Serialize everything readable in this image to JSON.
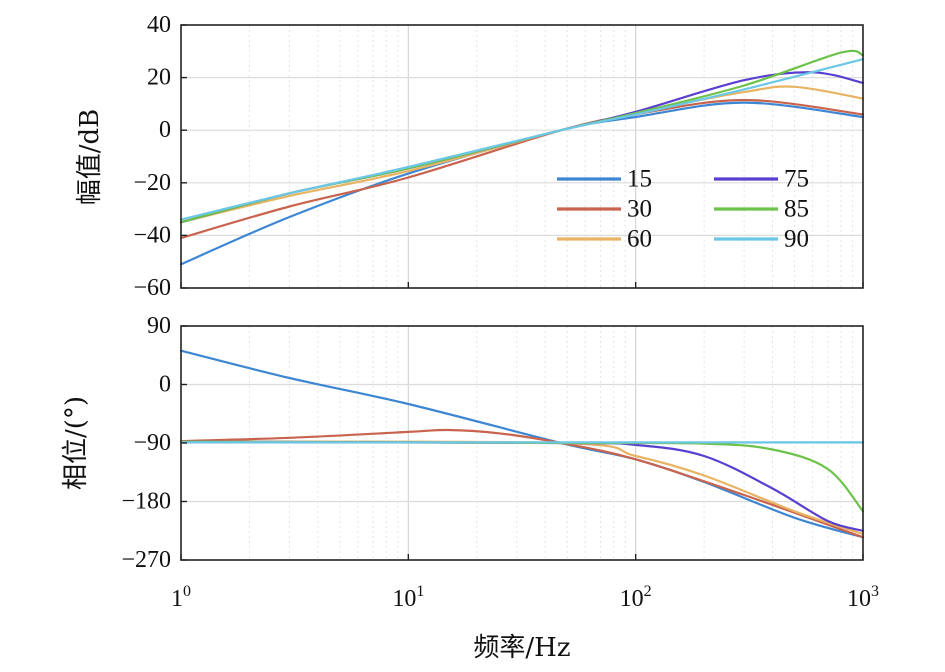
{
  "chart_data": [
    {
      "type": "line",
      "panel": "magnitude",
      "xscale": "log",
      "xlim": [
        1,
        1000
      ],
      "ylim": [
        -60,
        40
      ],
      "ylabel": "幅值/dB",
      "yticks": [
        "40",
        "20",
        "0",
        "−20",
        "−40",
        "−60"
      ],
      "ytick_values": [
        40,
        20,
        0,
        -20,
        -40,
        -60
      ],
      "grid": true,
      "legend_position": "center-right",
      "series": [
        {
          "name": "15",
          "color": "#3d86d4",
          "x": [
            1,
            3,
            10,
            47,
            100,
            300,
            1000
          ],
          "y": [
            -51,
            -33,
            -16.5,
            0,
            5,
            10.5,
            5
          ]
        },
        {
          "name": "30",
          "color": "#c8644e",
          "x": [
            1,
            3,
            10,
            47,
            100,
            300,
            1000
          ],
          "y": [
            -41,
            -29,
            -18,
            0,
            6,
            11.5,
            6
          ]
        },
        {
          "name": "60",
          "color": "#e8b464",
          "x": [
            1,
            3,
            10,
            47,
            100,
            300,
            500,
            1000
          ],
          "y": [
            -35,
            -25,
            -15.5,
            0,
            6.5,
            14.5,
            16.5,
            12
          ]
        },
        {
          "name": "75",
          "color": "#5a3fd0",
          "x": [
            1,
            3,
            10,
            47,
            100,
            300,
            600,
            1000
          ],
          "y": [
            -35,
            -24,
            -14.5,
            0,
            7,
            19,
            22,
            18
          ]
        },
        {
          "name": "85",
          "color": "#6cc24a",
          "x": [
            1,
            3,
            10,
            47,
            100,
            300,
            800,
            1000
          ],
          "y": [
            -35,
            -24,
            -14.5,
            0,
            6.5,
            17,
            29.5,
            28.5
          ]
        },
        {
          "name": "90",
          "color": "#6cc7e6",
          "x": [
            1,
            3,
            10,
            47,
            100,
            300,
            1000
          ],
          "y": [
            -34,
            -24,
            -14,
            0,
            6,
            15.5,
            27
          ]
        }
      ]
    },
    {
      "type": "line",
      "panel": "phase",
      "xscale": "log",
      "xlim": [
        1,
        1000
      ],
      "ylim": [
        -270,
        90
      ],
      "ylabel": "相位/(°)",
      "xlabel": "频率/Hz",
      "yticks": [
        "90",
        "0",
        "−90",
        "−180",
        "−270"
      ],
      "ytick_values": [
        90,
        0,
        -90,
        -180,
        -270
      ],
      "xticks": [
        "1",
        "10",
        "10",
        "10"
      ],
      "xtick_exponents": [
        "0",
        "1",
        "2",
        "3"
      ],
      "xtick_values": [
        1,
        10,
        100,
        1000
      ],
      "grid": true,
      "series": [
        {
          "name": "15",
          "color": "#3d86d4",
          "x": [
            1,
            3,
            10,
            47,
            100,
            200,
            500,
            1000
          ],
          "y": [
            52,
            10,
            -30,
            -90,
            -115,
            -150,
            -205,
            -235
          ]
        },
        {
          "name": "30",
          "color": "#c8644e",
          "x": [
            1,
            3,
            10,
            15,
            25,
            47,
            100,
            300,
            1000
          ],
          "y": [
            -87,
            -82,
            -73,
            -70,
            -75,
            -90,
            -115,
            -170,
            -235
          ]
        },
        {
          "name": "60",
          "color": "#e8b464",
          "x": [
            1,
            47,
            100,
            200,
            500,
            1000
          ],
          "y": [
            -88,
            -90,
            -110,
            -140,
            -195,
            -230
          ]
        },
        {
          "name": "75",
          "color": "#5a3fd0",
          "x": [
            1,
            47,
            100,
            200,
            400,
            700,
            1000
          ],
          "y": [
            -88,
            -90,
            -93,
            -110,
            -160,
            -210,
            -225
          ]
        },
        {
          "name": "85",
          "color": "#6cc24a",
          "x": [
            1,
            47,
            200,
            400,
            700,
            1000
          ],
          "y": [
            -88,
            -90,
            -91,
            -100,
            -130,
            -195
          ]
        },
        {
          "name": "90",
          "color": "#6cc7e6",
          "x": [
            1,
            1000
          ],
          "y": [
            -89,
            -89
          ]
        }
      ]
    }
  ]
}
